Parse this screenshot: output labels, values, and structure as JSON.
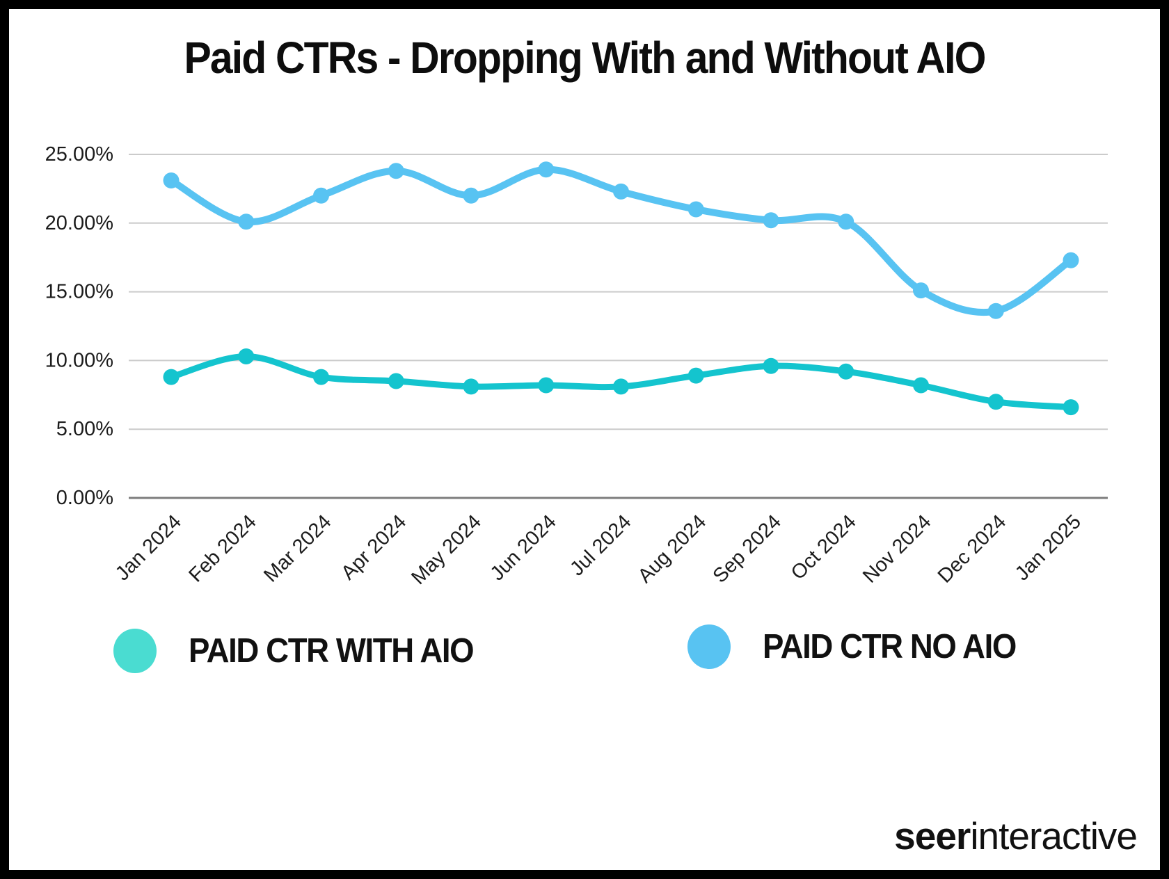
{
  "title": "Paid CTRs - Dropping With and Without AIO",
  "chart_data": {
    "type": "line",
    "title": "Paid CTRs - Dropping With and Without AIO",
    "categories": [
      "Jan 2024",
      "Feb 2024",
      "Mar 2024",
      "Apr 2024",
      "May 2024",
      "Jun 2024",
      "Jul 2024",
      "Aug 2024",
      "Sep 2024",
      "Oct 2024",
      "Nov 2024",
      "Dec 2024",
      "Jan 2025"
    ],
    "series": [
      {
        "name": "PAID CTR WITH AIO",
        "color": "#14C4CE",
        "legend_color": "#4ADCD1",
        "values": [
          8.8,
          10.3,
          8.8,
          8.5,
          8.1,
          8.2,
          8.1,
          8.9,
          9.6,
          9.2,
          8.2,
          7.0,
          6.6
        ]
      },
      {
        "name": "PAID CTR NO AIO",
        "color": "#58C3F2",
        "legend_color": "#58C3F2",
        "values": [
          23.1,
          20.1,
          22.0,
          23.8,
          22.0,
          23.9,
          22.3,
          21.0,
          20.2,
          20.1,
          15.1,
          13.6,
          17.3
        ]
      }
    ],
    "ylim": [
      0,
      25
    ],
    "yticks": [
      {
        "value": 0,
        "label": "0.00%"
      },
      {
        "value": 5,
        "label": "5.00%"
      },
      {
        "value": 10,
        "label": "10.00%"
      },
      {
        "value": 15,
        "label": "15.00%"
      },
      {
        "value": 20,
        "label": "20.00%"
      },
      {
        "value": 25,
        "label": "25.00%"
      }
    ],
    "grid": "horizontal",
    "legend_position": "bottom",
    "smooth": true
  },
  "footer": {
    "logo_bold": "seer",
    "logo_regular": "interactive"
  }
}
